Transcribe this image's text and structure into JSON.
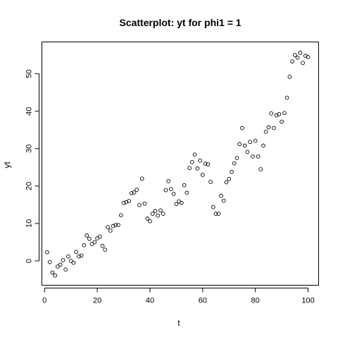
{
  "chart_data": {
    "type": "scatter",
    "title": "Scatterplot: yt for phi1 =  1",
    "xlabel": "t",
    "ylabel": "yt",
    "xlim": [
      -1,
      104
    ],
    "ylim": [
      -6.5,
      58.5
    ],
    "xticks": [
      0,
      20,
      40,
      60,
      80,
      100
    ],
    "yticks": [
      0,
      10,
      20,
      30,
      40,
      50
    ],
    "grid": false,
    "legend": "none",
    "marker": "open-circle",
    "colors": {
      "marker": "#000000",
      "axis": "#000000",
      "background": "#ffffff"
    },
    "x": [
      1,
      2,
      3,
      4,
      5,
      6,
      7,
      8,
      9,
      10,
      11,
      12,
      13,
      14,
      15,
      16,
      17,
      18,
      19,
      20,
      21,
      22,
      23,
      24,
      25,
      26,
      27,
      28,
      29,
      30,
      31,
      32,
      33,
      34,
      35,
      36,
      37,
      38,
      39,
      40,
      41,
      42,
      43,
      44,
      45,
      46,
      47,
      48,
      49,
      50,
      51,
      52,
      53,
      54,
      55,
      56,
      57,
      58,
      59,
      60,
      61,
      62,
      63,
      64,
      65,
      66,
      67,
      68,
      69,
      70,
      71,
      72,
      73,
      74,
      75,
      76,
      77,
      78,
      79,
      80,
      81,
      82,
      83,
      84,
      85,
      86,
      87,
      88,
      89,
      90,
      91,
      92,
      93,
      94,
      95,
      96,
      97,
      98,
      99,
      100
    ],
    "y": [
      2.3,
      -0.3,
      -3.1,
      -3.9,
      -1.5,
      -1.0,
      0.2,
      -2.3,
      1.2,
      0.0,
      -0.5,
      2.4,
      1.2,
      1.4,
      4.2,
      6.8,
      5.9,
      4.5,
      5.0,
      6.0,
      6.5,
      4.0,
      3.0,
      9.0,
      8.1,
      9.3,
      9.6,
      9.6,
      12.2,
      15.5,
      15.7,
      16.0,
      18.1,
      18.3,
      19.0,
      14.9,
      22.0,
      15.3,
      11.3,
      10.6,
      12.6,
      13.3,
      12.1,
      13.5,
      12.6,
      18.9,
      21.3,
      19.2,
      17.9,
      15.2,
      15.9,
      15.5,
      20.2,
      18.2,
      24.8,
      26.4,
      28.4,
      24.7,
      26.8,
      23.0,
      26.0,
      25.8,
      21.1,
      14.4,
      12.6,
      12.6,
      17.4,
      16.1,
      21.0,
      21.9,
      23.8,
      26.1,
      27.5,
      31.2,
      35.5,
      30.8,
      29.1,
      31.8,
      27.9,
      32.1,
      27.9,
      24.5,
      30.8,
      34.5,
      35.7,
      39.4,
      35.5,
      38.9,
      39.2,
      37.2,
      39.5,
      43.6,
      49.2,
      53.3,
      55.0,
      54.3,
      55.6,
      52.9,
      54.8,
      54.5
    ]
  }
}
